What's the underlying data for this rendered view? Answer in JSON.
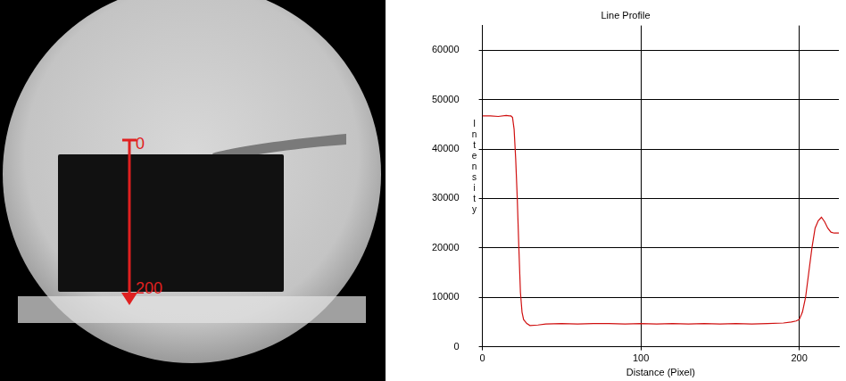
{
  "chart_data": {
    "type": "line",
    "title": "Line Profile",
    "x_label": "Distance (Pixel)",
    "y_label": "Intensity",
    "x": [
      0,
      5,
      10,
      15,
      17,
      18,
      19,
      20,
      21,
      22,
      23,
      24,
      25,
      26,
      28,
      30,
      35,
      40,
      50,
      60,
      70,
      80,
      90,
      100,
      110,
      120,
      130,
      140,
      150,
      160,
      170,
      180,
      190,
      195,
      198,
      200,
      202,
      204,
      206,
      208,
      210,
      212,
      214,
      216,
      218,
      220,
      222,
      225
    ],
    "values": [
      46700,
      46700,
      46600,
      46800,
      46700,
      46700,
      46400,
      44000,
      38000,
      30000,
      20000,
      11000,
      7000,
      5500,
      4700,
      4300,
      4400,
      4600,
      4700,
      4600,
      4700,
      4700,
      4600,
      4700,
      4600,
      4700,
      4600,
      4700,
      4600,
      4700,
      4600,
      4700,
      4800,
      5000,
      5200,
      5500,
      7000,
      10000,
      15000,
      20000,
      24000,
      25500,
      26200,
      25300,
      24000,
      23200,
      23000,
      23000
    ],
    "color": "#d01010",
    "xlim": [
      0,
      225
    ],
    "xticks": [
      0,
      100,
      200
    ],
    "ylim": [
      0,
      65000
    ],
    "yticks": [
      0,
      10000,
      20000,
      30000,
      40000,
      50000,
      60000
    ],
    "grid": true
  },
  "image": {
    "arrow_labels": [
      "0",
      "200"
    ]
  }
}
